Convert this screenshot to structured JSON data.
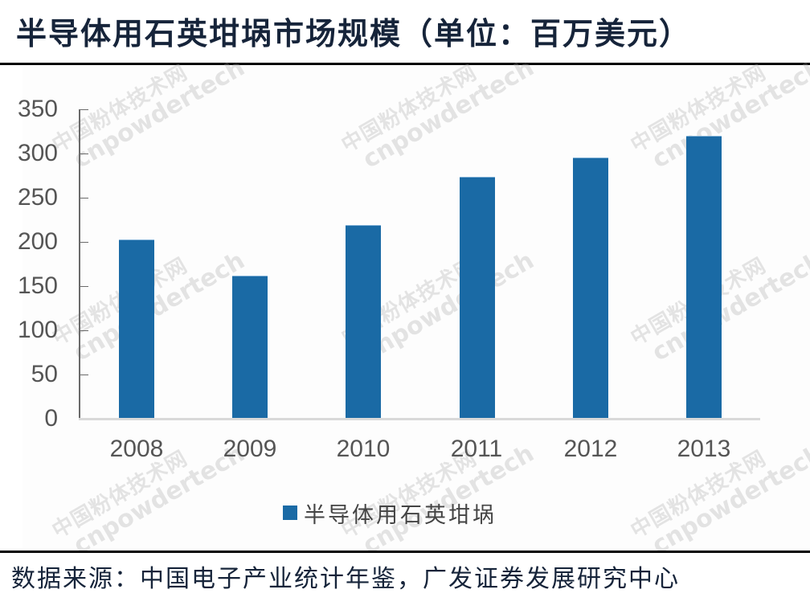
{
  "header": {
    "title": "半导体用石英坩埚市场规模（单位：百万美元）"
  },
  "footer": {
    "source": "数据来源：中国电子产业统计年鉴，广发证券发展研究中心"
  },
  "watermark": {
    "line1": "中国粉体技术网",
    "line2": "cnpowdertech"
  },
  "colors": {
    "bar": "#1a6aa5",
    "title": "#16243a",
    "axis_text": "#555555"
  },
  "chart_data": {
    "type": "bar",
    "title": "半导体用石英坩埚市场规模（单位：百万美元）",
    "categories": [
      "2008",
      "2009",
      "2010",
      "2011",
      "2012",
      "2013"
    ],
    "series": [
      {
        "name": "半导体用石英坩埚",
        "values": [
          203,
          162,
          219,
          274,
          295,
          320
        ]
      }
    ],
    "values": [
      203,
      162,
      219,
      274,
      295,
      320
    ],
    "xlabel": "",
    "ylabel": "",
    "ylim": [
      0,
      350
    ],
    "yticks": [
      "0",
      "50",
      "100",
      "150",
      "200",
      "250",
      "300",
      "350"
    ],
    "grid": false,
    "legend": {
      "position": "bottom",
      "entries": [
        "半导体用石英坩埚"
      ]
    },
    "source": "数据来源：中国电子产业统计年鉴，广发证券发展研究中心"
  }
}
